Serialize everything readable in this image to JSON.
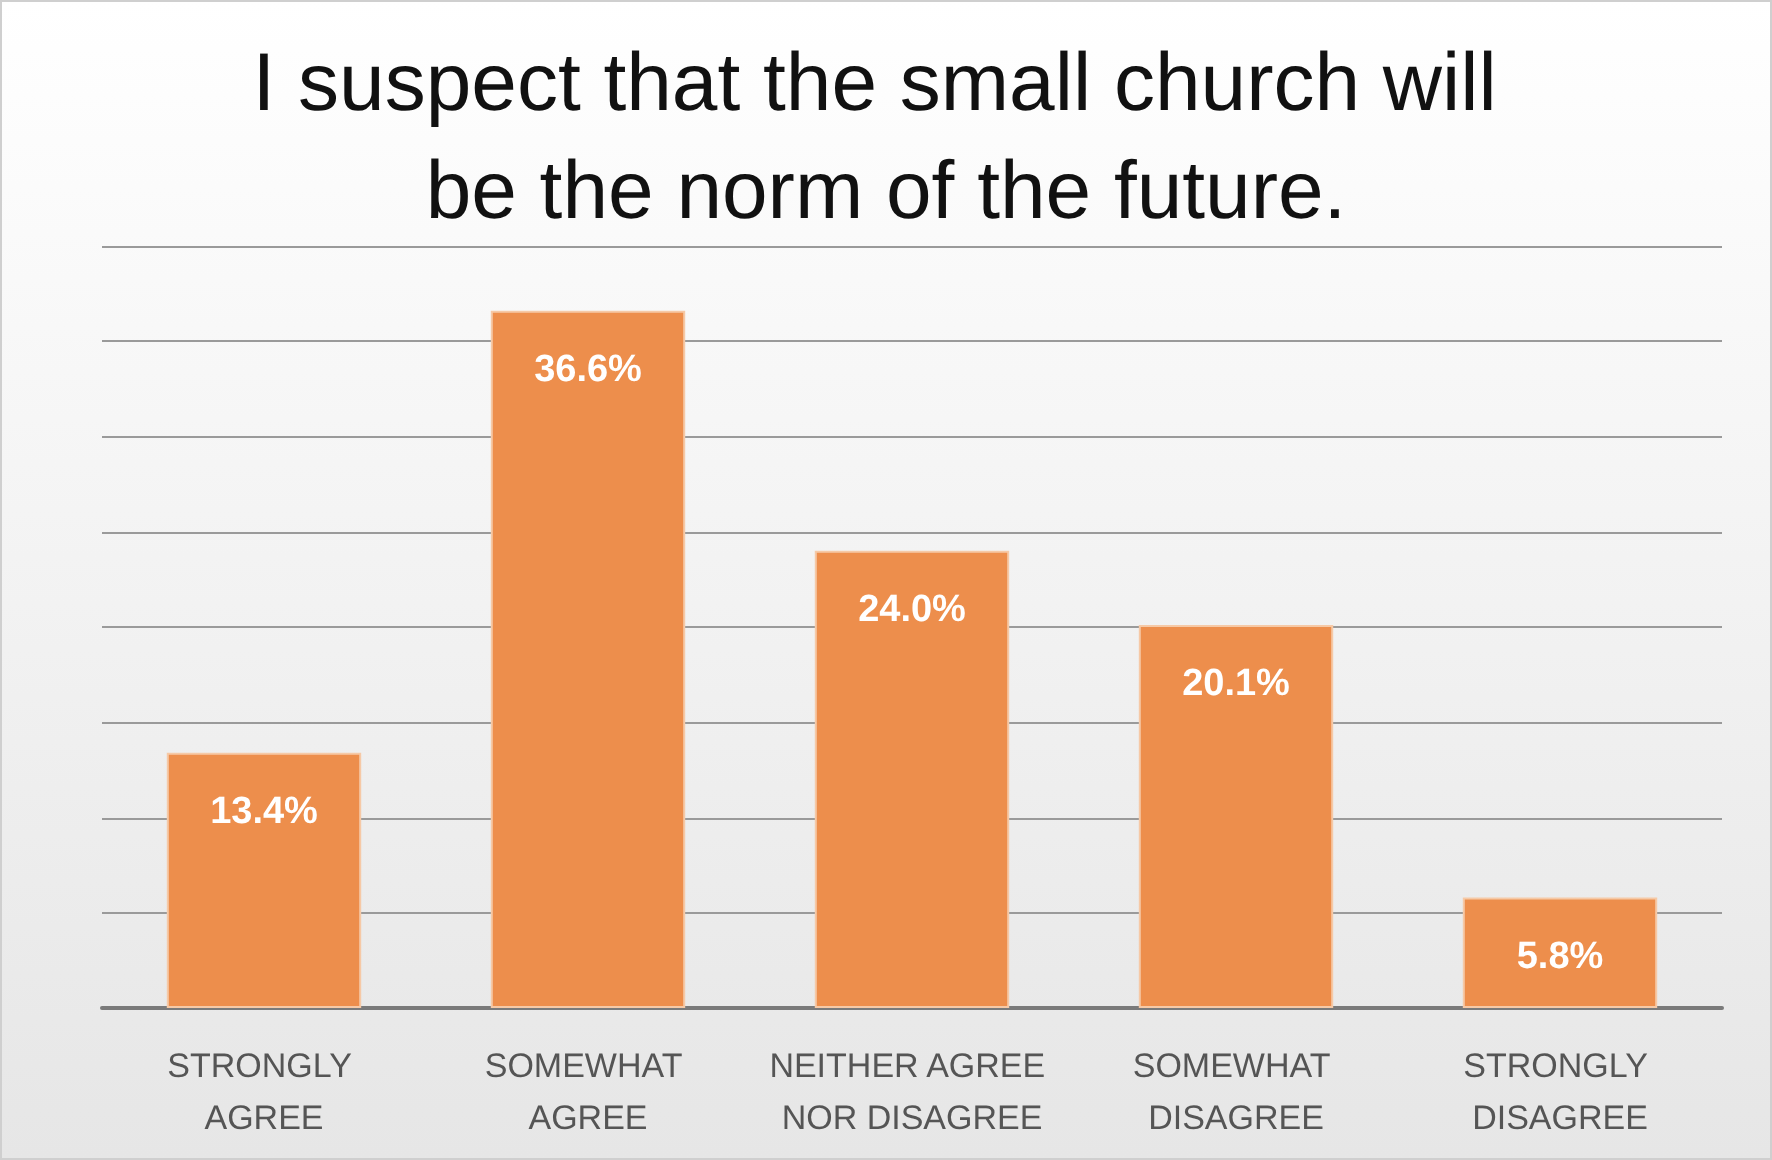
{
  "chart_data": {
    "type": "bar",
    "title": "I suspect that the small church will be the norm of the future.",
    "categories": [
      "STRONGLY AGREE",
      "SOMEWHAT AGREE",
      "NEITHER AGREE NOR DISAGREE",
      "SOMEWHAT DISAGREE",
      "STRONGLY DISAGREE"
    ],
    "values": [
      13.4,
      36.6,
      24.0,
      20.1,
      5.8
    ],
    "value_labels": [
      "13.4%",
      "36.6%",
      "24.0%",
      "20.1%",
      "5.8%"
    ],
    "color": "#ed8e4c",
    "ylim": [
      0,
      40
    ],
    "yticks": [
      {
        "value": 0,
        "label": null
      },
      {
        "value": 5,
        "label": null
      },
      {
        "value": 10,
        "label": null
      },
      {
        "value": 15,
        "label": null
      },
      {
        "value": 20,
        "label": null
      },
      {
        "value": 25,
        "label": null
      },
      {
        "value": 30,
        "label": null
      },
      {
        "value": 35,
        "label": null
      },
      {
        "value": 40,
        "label": null
      }
    ],
    "tick_labels": "x",
    "grid": "y"
  }
}
